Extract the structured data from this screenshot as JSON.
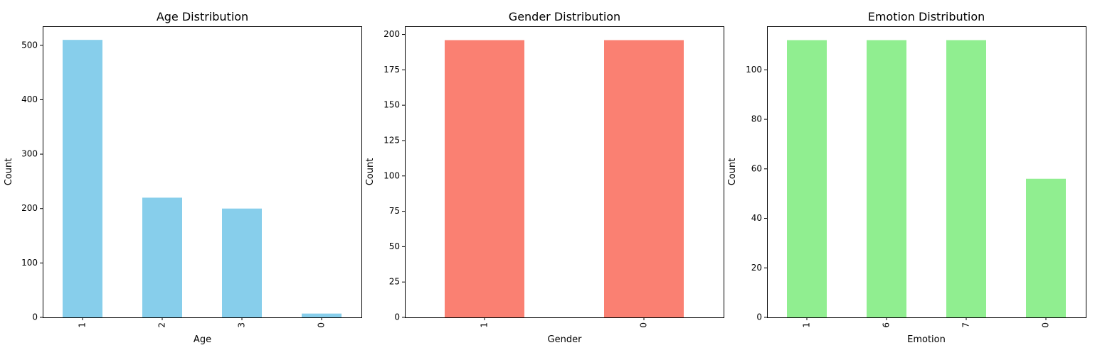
{
  "chart_data": [
    {
      "type": "bar",
      "title": "Age Distribution",
      "xlabel": "Age",
      "ylabel": "Count",
      "categories": [
        "1",
        "2",
        "3",
        "0"
      ],
      "values": [
        510,
        220,
        200,
        7
      ],
      "ylim": [
        0,
        535
      ],
      "yticks": [
        0,
        100,
        200,
        300,
        400,
        500
      ],
      "color": "#87ceeb",
      "grid": false
    },
    {
      "type": "bar",
      "title": "Gender Distribution",
      "xlabel": "Gender",
      "ylabel": "Count",
      "categories": [
        "1",
        "0"
      ],
      "values": [
        196,
        196
      ],
      "ylim": [
        0,
        205.8
      ],
      "yticks": [
        0,
        25,
        50,
        75,
        100,
        125,
        150,
        175,
        200
      ],
      "color": "#fa8072",
      "grid": false
    },
    {
      "type": "bar",
      "title": "Emotion Distribution",
      "xlabel": "Emotion",
      "ylabel": "Count",
      "categories": [
        "1",
        "6",
        "7",
        "0"
      ],
      "values": [
        112,
        112,
        112,
        56
      ],
      "ylim": [
        0,
        117.6
      ],
      "yticks": [
        0,
        20,
        40,
        60,
        80,
        100
      ],
      "color": "#90ee90",
      "grid": false
    }
  ]
}
